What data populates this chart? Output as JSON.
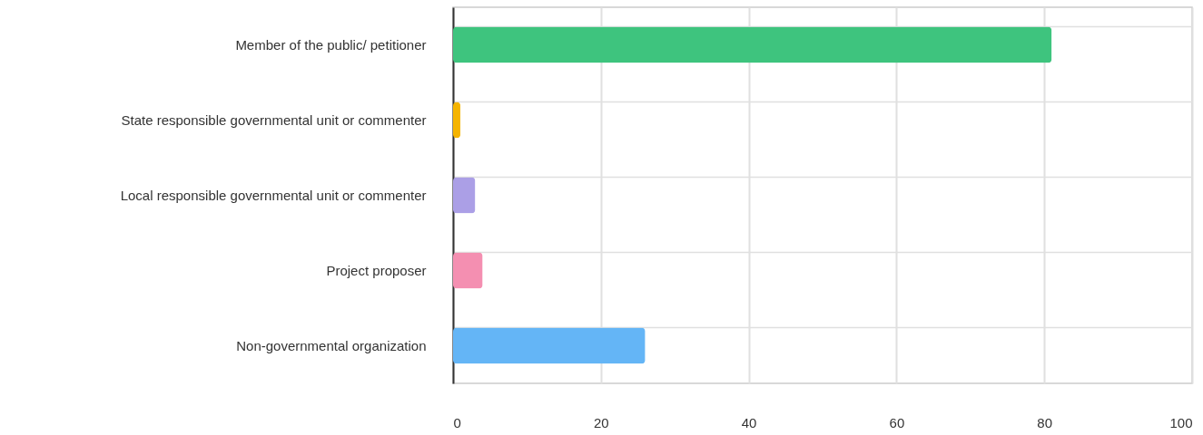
{
  "chart_data": {
    "type": "bar",
    "orientation": "horizontal",
    "categories": [
      "Member of the public/ petitioner",
      "State responsible governmental unit or commenter",
      "Local responsible governmental unit or commenter",
      "Project proposer",
      "Non-governmental organization"
    ],
    "values": [
      81,
      1,
      3,
      4,
      26
    ],
    "colors": [
      "#3ec47e",
      "#f5b400",
      "#ab9fe6",
      "#f48fb1",
      "#64b5f6"
    ],
    "xlim": [
      0,
      100
    ],
    "xticks": [
      0,
      20,
      40,
      60,
      80,
      100
    ],
    "grid": true
  }
}
